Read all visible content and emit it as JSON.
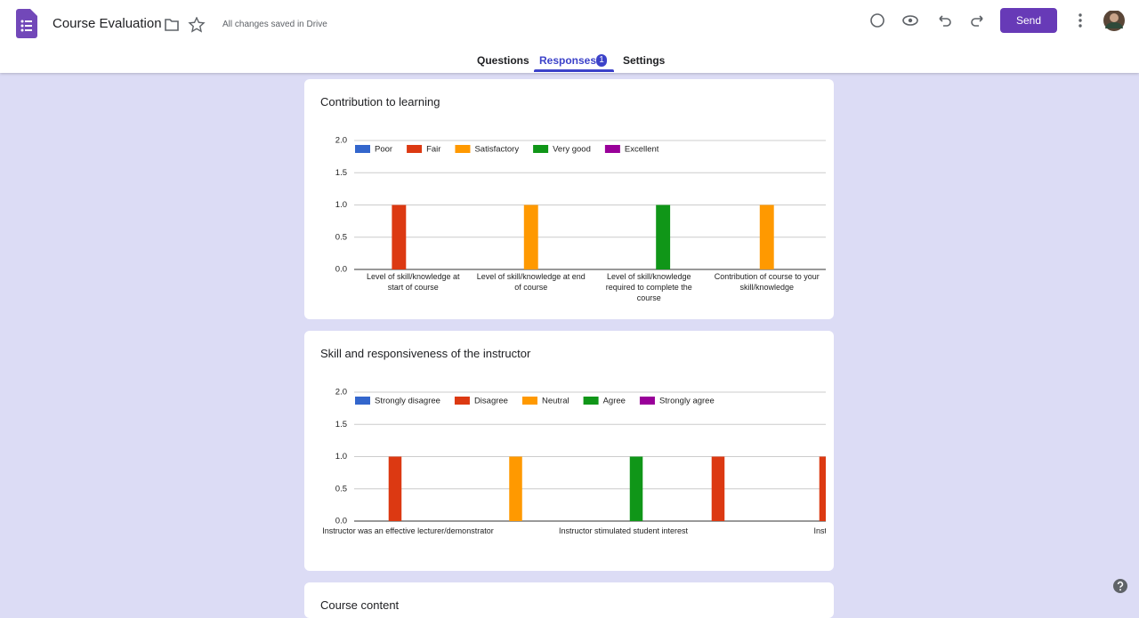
{
  "header": {
    "title": "Course Evaluation",
    "status": "All changes saved in Drive",
    "send": "Send"
  },
  "tabs": {
    "items": [
      "Questions",
      "Responses",
      "Settings"
    ],
    "badge": "1"
  },
  "next_section": {
    "title": "Course content"
  },
  "chart_data": [
    {
      "type": "bar",
      "title": "Contribution to learning",
      "categories": [
        "Level of skill/knowledge at start of course",
        "Level of skill/knowledge at end of course",
        "Level of skill/knowledge required to complete the course",
        "Contribution of course to your skill/knowledge"
      ],
      "series": [
        {
          "name": "Poor",
          "color": "#3366cc",
          "values": [
            0,
            0,
            0,
            0
          ]
        },
        {
          "name": "Fair",
          "color": "#dc3912",
          "values": [
            1,
            0,
            0,
            0
          ]
        },
        {
          "name": "Satisfactory",
          "color": "#ff9900",
          "values": [
            0,
            1,
            0,
            1
          ]
        },
        {
          "name": "Very good",
          "color": "#109618",
          "values": [
            0,
            0,
            1,
            0
          ]
        },
        {
          "name": "Excellent",
          "color": "#990099",
          "values": [
            0,
            0,
            0,
            0
          ]
        }
      ],
      "ylim": [
        0,
        2
      ],
      "yticks": [
        {
          "value": 0,
          "label": "0.0"
        },
        0.5,
        {
          "value": 1,
          "label": "1.0"
        },
        1.5,
        {
          "value": 2,
          "label": "2.0"
        }
      ],
      "grid": true,
      "legend": "top"
    },
    {
      "type": "bar",
      "title": "Skill and responsiveness of the instructor",
      "categories": [
        "Instructor was an effective lecturer/demonstrator",
        null,
        "Instructor stimulated student interest",
        null,
        "Instructor was"
      ],
      "series": [
        {
          "name": "Strongly disagree",
          "color": "#3366cc",
          "values": [
            0,
            0,
            0,
            0,
            0
          ]
        },
        {
          "name": "Disagree",
          "color": "#dc3912",
          "values": [
            1,
            0,
            0,
            1,
            1
          ]
        },
        {
          "name": "Neutral",
          "color": "#ff9900",
          "values": [
            0,
            1,
            0,
            0,
            0
          ]
        },
        {
          "name": "Agree",
          "color": "#109618",
          "values": [
            0,
            0,
            1,
            0,
            0
          ]
        },
        {
          "name": "Strongly agree",
          "color": "#990099",
          "values": [
            0,
            0,
            0,
            0,
            0
          ]
        }
      ],
      "ylim": [
        0,
        2
      ],
      "yticks": [
        {
          "value": 0,
          "label": "0.0"
        },
        0.5,
        {
          "value": 1,
          "label": "1.0"
        },
        1.5,
        {
          "value": 2,
          "label": "2.0"
        }
      ],
      "grid": true,
      "legend": "top"
    }
  ]
}
